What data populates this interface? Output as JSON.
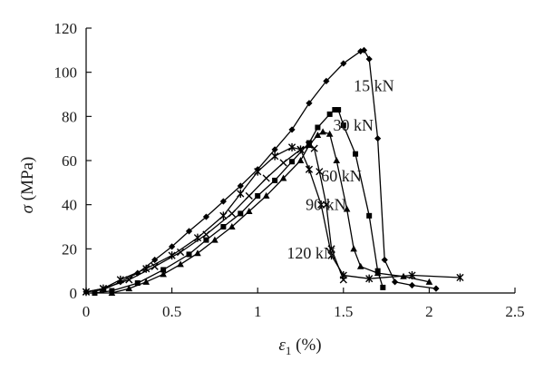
{
  "chart_data": {
    "type": "line",
    "xlabel_symbol": "ε",
    "xlabel_subscript": "1",
    "xlabel_unit": " (%)",
    "ylabel_symbol": "σ",
    "ylabel_unit": " (MPa)",
    "xlim": [
      0,
      2.5
    ],
    "ylim": [
      0,
      120
    ],
    "x_ticks": [
      "0",
      "0.5",
      "1",
      "1.5",
      "2",
      "2.5"
    ],
    "y_ticks": [
      "0",
      "20",
      "40",
      "60",
      "80",
      "100",
      "120"
    ],
    "grid": false,
    "legend": "none (series labelled inline)",
    "series": [
      {
        "name": "15 kN",
        "marker": "diamond",
        "points": [
          [
            0,
            0.5
          ],
          [
            0.1,
            1.5
          ],
          [
            0.2,
            5
          ],
          [
            0.3,
            9
          ],
          [
            0.4,
            15
          ],
          [
            0.5,
            21
          ],
          [
            0.6,
            28
          ],
          [
            0.7,
            34.5
          ],
          [
            0.8,
            41.5
          ],
          [
            0.9,
            48.5
          ],
          [
            1.0,
            56
          ],
          [
            1.1,
            65
          ],
          [
            1.2,
            74
          ],
          [
            1.3,
            86
          ],
          [
            1.4,
            96
          ],
          [
            1.5,
            104
          ],
          [
            1.6,
            109.5
          ],
          [
            1.62,
            110
          ],
          [
            1.65,
            106
          ],
          [
            1.7,
            70
          ],
          [
            1.74,
            15
          ],
          [
            1.8,
            5
          ],
          [
            1.9,
            3.5
          ],
          [
            2.04,
            2
          ]
        ]
      },
      {
        "name": "30 kN",
        "marker": "square",
        "points": [
          [
            0.05,
            0
          ],
          [
            0.15,
            1
          ],
          [
            0.3,
            4.5
          ],
          [
            0.45,
            10.5
          ],
          [
            0.6,
            17.5
          ],
          [
            0.7,
            24
          ],
          [
            0.8,
            30
          ],
          [
            0.9,
            36
          ],
          [
            1.0,
            44
          ],
          [
            1.1,
            51
          ],
          [
            1.2,
            59.5
          ],
          [
            1.3,
            68
          ],
          [
            1.35,
            75
          ],
          [
            1.42,
            81
          ],
          [
            1.45,
            83
          ],
          [
            1.47,
            83
          ],
          [
            1.5,
            76
          ],
          [
            1.57,
            63
          ],
          [
            1.65,
            35
          ],
          [
            1.7,
            10
          ],
          [
            1.73,
            2.5
          ]
        ]
      },
      {
        "name": "60 kN",
        "marker": "triangle",
        "points": [
          [
            0.15,
            0
          ],
          [
            0.25,
            2
          ],
          [
            0.35,
            5
          ],
          [
            0.45,
            8.5
          ],
          [
            0.55,
            13
          ],
          [
            0.65,
            18
          ],
          [
            0.75,
            24
          ],
          [
            0.85,
            30
          ],
          [
            0.95,
            37
          ],
          [
            1.05,
            44
          ],
          [
            1.15,
            52
          ],
          [
            1.25,
            60
          ],
          [
            1.3,
            67
          ],
          [
            1.35,
            71.5
          ],
          [
            1.38,
            73
          ],
          [
            1.42,
            72
          ],
          [
            1.46,
            60
          ],
          [
            1.52,
            38
          ],
          [
            1.56,
            20
          ],
          [
            1.6,
            12
          ],
          [
            1.7,
            9
          ],
          [
            1.85,
            7.5
          ],
          [
            2.0,
            5
          ]
        ]
      },
      {
        "name": "90 kN",
        "marker": "x",
        "points": [
          [
            0,
            0.5
          ],
          [
            0.1,
            2
          ],
          [
            0.25,
            6
          ],
          [
            0.4,
            12
          ],
          [
            0.55,
            18.5
          ],
          [
            0.7,
            26.5
          ],
          [
            0.85,
            36
          ],
          [
            0.95,
            44
          ],
          [
            1.05,
            52
          ],
          [
            1.15,
            59
          ],
          [
            1.25,
            65
          ],
          [
            1.3,
            67
          ],
          [
            1.33,
            65.5
          ],
          [
            1.36,
            55
          ],
          [
            1.4,
            40
          ],
          [
            1.43,
            20
          ],
          [
            1.5,
            6
          ]
        ]
      },
      {
        "name": "120 kN",
        "marker": "asterisk",
        "points": [
          [
            0,
            0.5
          ],
          [
            0.1,
            2
          ],
          [
            0.2,
            6
          ],
          [
            0.35,
            11
          ],
          [
            0.5,
            17
          ],
          [
            0.65,
            25
          ],
          [
            0.8,
            35
          ],
          [
            0.9,
            45
          ],
          [
            1.0,
            55
          ],
          [
            1.1,
            62
          ],
          [
            1.2,
            66
          ],
          [
            1.25,
            65
          ],
          [
            1.3,
            56
          ],
          [
            1.37,
            40
          ],
          [
            1.43,
            17
          ],
          [
            1.5,
            8
          ],
          [
            1.65,
            6.5
          ],
          [
            1.9,
            8
          ],
          [
            2.18,
            7
          ]
        ]
      }
    ],
    "labels": [
      "15 kN",
      "30 kN",
      "60 kN",
      "90 kN",
      "120 kN"
    ]
  }
}
